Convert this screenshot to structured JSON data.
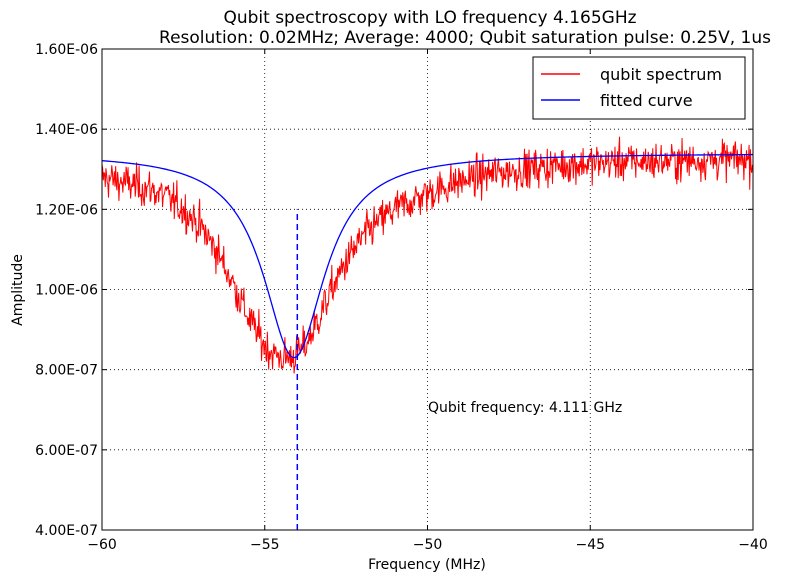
{
  "chart_data": {
    "type": "line",
    "title": "Qubit spectroscopy with LO frequency 4.165GHz",
    "subtitle": "Resolution: 0.02MHz; Average: 4000; Qubit saturation pulse: 0.25V, 1us",
    "xlabel": "Frequency (MHz)",
    "ylabel": "Amplitude",
    "xlim": [
      -60,
      -40
    ],
    "ylim": [
      4e-07,
      1.6e-06
    ],
    "x_ticks": [
      -60,
      -55,
      -50,
      -45,
      -40
    ],
    "x_tick_labels": [
      "−60",
      "−55",
      "−50",
      "−45",
      "−40"
    ],
    "y_ticks": [
      4e-07,
      6e-07,
      8e-07,
      1e-06,
      1.2e-06,
      1.4e-06,
      1.6e-06
    ],
    "y_tick_labels": [
      "4.00E-07",
      "6.00E-07",
      "8.00E-07",
      "1.00E-06",
      "1.20E-06",
      "1.40E-06",
      "1.60E-06"
    ],
    "grid": true,
    "legend_position": "top-right",
    "series": [
      {
        "name": "qubit spectrum",
        "color": "#ff0000",
        "x": [
          -60.0,
          -59.5,
          -59.0,
          -58.5,
          -58.0,
          -57.5,
          -57.0,
          -56.5,
          -56.0,
          -55.5,
          -55.0,
          -54.75,
          -54.5,
          -54.25,
          -54.0,
          -53.75,
          -53.5,
          -53.0,
          -52.5,
          -52.0,
          -51.5,
          -51.0,
          -50.5,
          -50.0,
          -49.0,
          -48.0,
          -47.0,
          -46.0,
          -45.0,
          -44.0,
          -43.0,
          -42.0,
          -41.0,
          -40.0
        ],
        "y": [
          1.28e-06,
          1.27e-06,
          1.26e-06,
          1.25e-06,
          1.23e-06,
          1.2e-06,
          1.16e-06,
          1.1e-06,
          1.02e-06,
          9.3e-07,
          8.6e-07,
          8.4e-07,
          8.3e-07,
          8.3e-07,
          8.4e-07,
          8.6e-07,
          9e-07,
          9.9e-07,
          1.07e-06,
          1.13e-06,
          1.17e-06,
          1.2e-06,
          1.22e-06,
          1.24e-06,
          1.27e-06,
          1.29e-06,
          1.3e-06,
          1.31e-06,
          1.315e-06,
          1.32e-06,
          1.32e-06,
          1.322e-06,
          1.324e-06,
          1.325e-06
        ]
      },
      {
        "name": "fitted curve",
        "color": "#0000ff",
        "model": "lorentzian",
        "center": -54.1,
        "half_width": 1.15,
        "baseline": 1.34e-06,
        "depth": 5.1e-07
      }
    ],
    "marker_line": {
      "x": -54.0,
      "y_from": 4e-07,
      "y_to": 1.2e-06,
      "color": "#0000ff",
      "style": "dashed"
    },
    "annotations": [
      {
        "text": "Qubit frequency: 4.111 GHz",
        "x": -50.0,
        "y": 7.1e-07
      }
    ]
  }
}
